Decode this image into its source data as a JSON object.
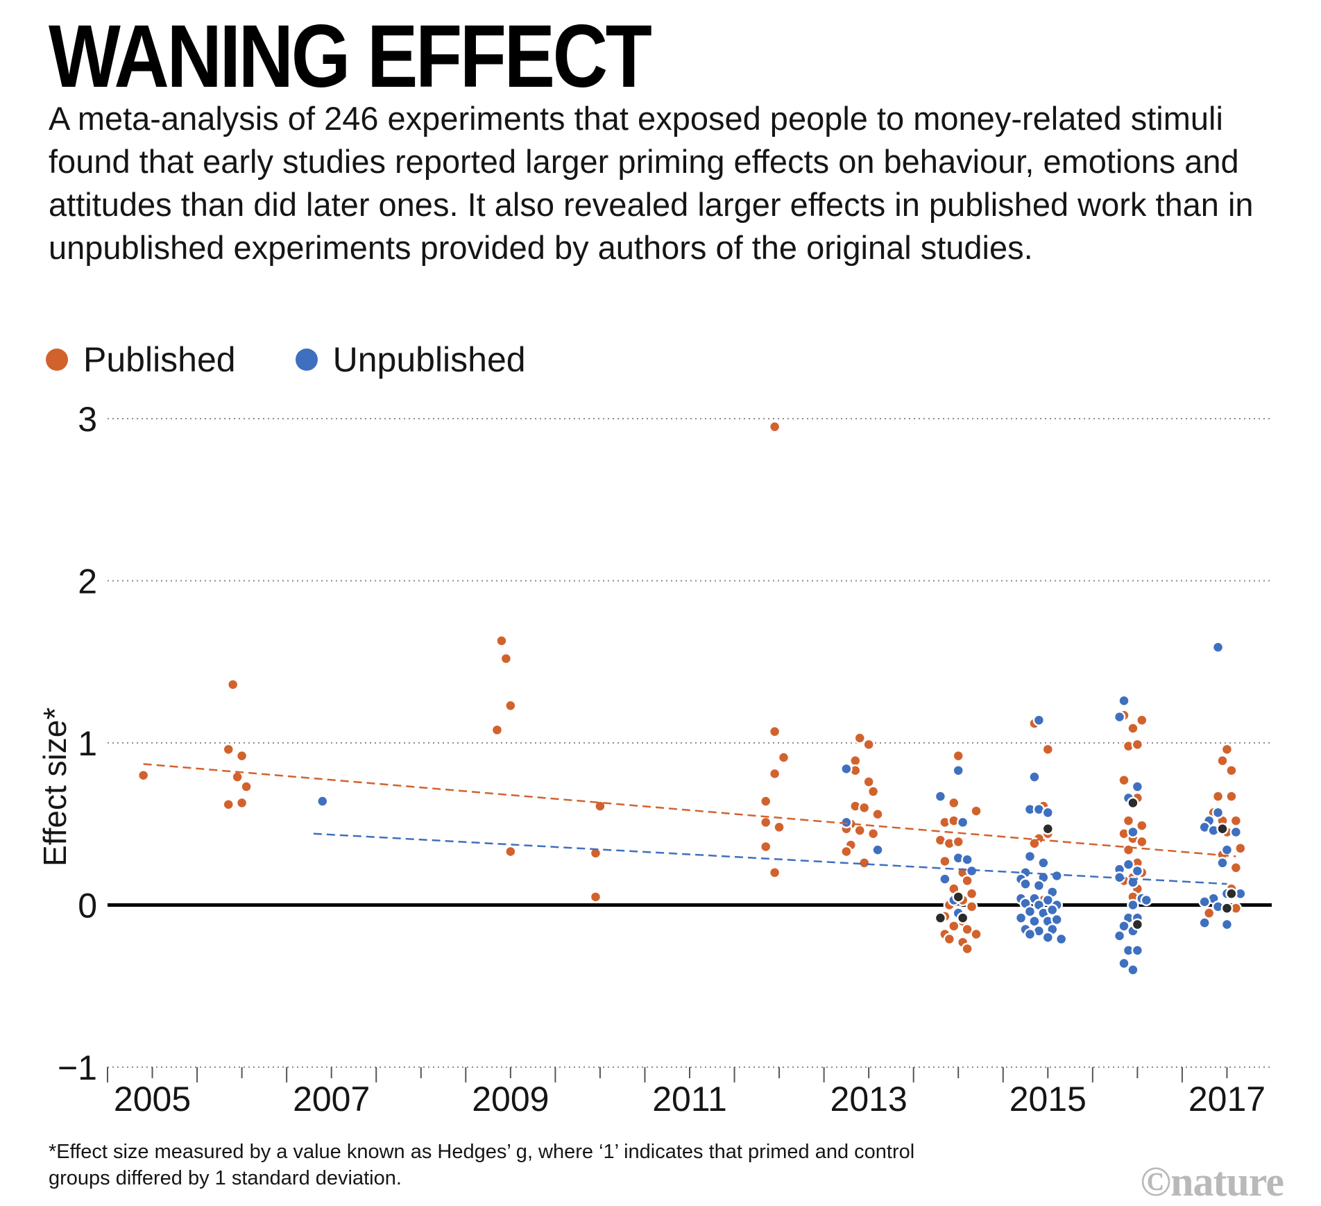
{
  "header": {
    "title": "WANING EFFECT",
    "subtitle": "A meta-analysis of 246 experiments that exposed people to money-related stimuli found that early studies reported larger priming effects on behaviour, emotions and attitudes than did later ones. It also revealed larger effects in published work than in unpublished experiments provided by authors of the original studies."
  },
  "legend": {
    "published": "Published",
    "unpublished": "Unpublished"
  },
  "footnote": "*Effect size measured by a value known as Hedges’ g, where ‘1’ indicates that primed and control groups differed by 1 standard deviation.",
  "credit": "©nature",
  "colors": {
    "published": "#d2622d",
    "unpublished": "#3f6fbf",
    "overlap": "#2b2b2b",
    "zero_line": "#000000",
    "grid": "#8a8a8a"
  },
  "chart_data": {
    "type": "scatter",
    "ylabel": "Effect size*",
    "ylim": [
      -1,
      3
    ],
    "yticks": [
      3,
      2,
      1,
      0,
      -1
    ],
    "xlim": [
      2004.5,
      2017.5
    ],
    "xticks": [
      2005,
      2007,
      2009,
      2011,
      2013,
      2015,
      2017
    ],
    "grid": "dotted horizontal",
    "legend_position": "top-left",
    "series": [
      {
        "name": "Published",
        "trend": [
          [
            2004.9,
            0.87
          ],
          [
            2017.1,
            0.3
          ]
        ],
        "points": [
          [
            2004.9,
            0.8
          ],
          [
            2005.9,
            1.36
          ],
          [
            2005.85,
            0.96
          ],
          [
            2006.0,
            0.92
          ],
          [
            2005.95,
            0.79
          ],
          [
            2006.05,
            0.73
          ],
          [
            2005.85,
            0.62
          ],
          [
            2006.0,
            0.63
          ],
          [
            2008.9,
            1.63
          ],
          [
            2008.95,
            1.52
          ],
          [
            2009.0,
            1.23
          ],
          [
            2008.85,
            1.08
          ],
          [
            2009.0,
            0.33
          ],
          [
            2010.0,
            0.61
          ],
          [
            2009.95,
            0.32
          ],
          [
            2009.95,
            0.05
          ],
          [
            2011.95,
            2.95
          ],
          [
            2011.95,
            1.07
          ],
          [
            2012.05,
            0.91
          ],
          [
            2011.95,
            0.81
          ],
          [
            2011.85,
            0.64
          ],
          [
            2011.85,
            0.51
          ],
          [
            2012.0,
            0.48
          ],
          [
            2011.85,
            0.36
          ],
          [
            2011.95,
            0.2
          ],
          [
            2012.9,
            1.03
          ],
          [
            2012.85,
            0.89
          ],
          [
            2013.0,
            0.99
          ],
          [
            2012.85,
            0.83
          ],
          [
            2013.0,
            0.76
          ],
          [
            2013.05,
            0.7
          ],
          [
            2012.85,
            0.61
          ],
          [
            2012.95,
            0.6
          ],
          [
            2013.1,
            0.56
          ],
          [
            2012.8,
            0.5
          ],
          [
            2012.75,
            0.47
          ],
          [
            2012.9,
            0.46
          ],
          [
            2013.05,
            0.44
          ],
          [
            2012.8,
            0.37
          ],
          [
            2012.75,
            0.33
          ],
          [
            2012.95,
            0.26
          ],
          [
            2014.0,
            0.92
          ],
          [
            2013.95,
            0.63
          ],
          [
            2014.2,
            0.58
          ],
          [
            2013.85,
            0.51
          ],
          [
            2013.95,
            0.52
          ],
          [
            2013.8,
            0.4
          ],
          [
            2013.9,
            0.38
          ],
          [
            2014.0,
            0.39
          ],
          [
            2013.85,
            0.27
          ],
          [
            2014.05,
            0.2
          ],
          [
            2014.1,
            0.15
          ],
          [
            2013.95,
            0.1
          ],
          [
            2014.15,
            0.07
          ],
          [
            2014.05,
            0.03
          ],
          [
            2013.9,
            0.0
          ],
          [
            2014.15,
            -0.01
          ],
          [
            2014.0,
            -0.04
          ],
          [
            2013.85,
            -0.07
          ],
          [
            2014.05,
            -0.1
          ],
          [
            2013.95,
            -0.13
          ],
          [
            2014.1,
            -0.15
          ],
          [
            2013.85,
            -0.18
          ],
          [
            2014.2,
            -0.18
          ],
          [
            2013.9,
            -0.21
          ],
          [
            2014.05,
            -0.23
          ],
          [
            2014.1,
            -0.27
          ],
          [
            2014.85,
            1.12
          ],
          [
            2015.0,
            0.96
          ],
          [
            2014.95,
            0.61
          ],
          [
            2015.0,
            0.44
          ],
          [
            2014.9,
            0.41
          ],
          [
            2014.85,
            0.38
          ],
          [
            2015.05,
            0.07
          ],
          [
            2014.95,
            0.03
          ],
          [
            2015.85,
            1.17
          ],
          [
            2016.05,
            1.14
          ],
          [
            2015.95,
            1.09
          ],
          [
            2015.9,
            0.98
          ],
          [
            2016.0,
            0.99
          ],
          [
            2015.85,
            0.77
          ],
          [
            2015.95,
            0.62
          ],
          [
            2016.0,
            0.66
          ],
          [
            2015.9,
            0.52
          ],
          [
            2016.05,
            0.49
          ],
          [
            2015.85,
            0.44
          ],
          [
            2015.95,
            0.41
          ],
          [
            2016.05,
            0.39
          ],
          [
            2015.9,
            0.34
          ],
          [
            2016.0,
            0.26
          ],
          [
            2015.8,
            0.22
          ],
          [
            2016.05,
            0.2
          ],
          [
            2015.95,
            0.17
          ],
          [
            2015.85,
            0.15
          ],
          [
            2016.0,
            0.1
          ],
          [
            2015.95,
            0.05
          ],
          [
            2017.0,
            0.96
          ],
          [
            2016.95,
            0.89
          ],
          [
            2017.05,
            0.83
          ],
          [
            2016.9,
            0.67
          ],
          [
            2017.05,
            0.67
          ],
          [
            2016.85,
            0.57
          ],
          [
            2016.95,
            0.52
          ],
          [
            2017.1,
            0.52
          ],
          [
            2016.85,
            0.47
          ],
          [
            2017.0,
            0.45
          ],
          [
            2017.15,
            0.35
          ],
          [
            2016.95,
            0.31
          ],
          [
            2017.1,
            0.23
          ],
          [
            2017.05,
            0.1
          ],
          [
            2016.9,
            -0.02
          ],
          [
            2017.1,
            -0.02
          ],
          [
            2016.8,
            -0.05
          ]
        ]
      },
      {
        "name": "Unpublished",
        "trend": [
          [
            2006.8,
            0.44
          ],
          [
            2017.0,
            0.13
          ]
        ],
        "points": [
          [
            2006.9,
            0.64
          ],
          [
            2012.75,
            0.84
          ],
          [
            2012.75,
            0.51
          ],
          [
            2013.1,
            0.34
          ],
          [
            2013.8,
            0.67
          ],
          [
            2014.0,
            0.83
          ],
          [
            2014.05,
            0.51
          ],
          [
            2014.0,
            0.29
          ],
          [
            2014.1,
            0.28
          ],
          [
            2014.15,
            0.21
          ],
          [
            2013.85,
            0.16
          ],
          [
            2013.95,
            0.03
          ],
          [
            2014.0,
            -0.05
          ],
          [
            2014.9,
            1.14
          ],
          [
            2014.85,
            0.79
          ],
          [
            2014.8,
            0.59
          ],
          [
            2014.9,
            0.59
          ],
          [
            2015.0,
            0.57
          ],
          [
            2014.8,
            0.3
          ],
          [
            2014.95,
            0.26
          ],
          [
            2014.75,
            0.2
          ],
          [
            2014.7,
            0.16
          ],
          [
            2014.95,
            0.17
          ],
          [
            2015.1,
            0.18
          ],
          [
            2014.75,
            0.13
          ],
          [
            2014.9,
            0.12
          ],
          [
            2015.05,
            0.08
          ],
          [
            2014.7,
            0.04
          ],
          [
            2014.85,
            0.04
          ],
          [
            2015.0,
            0.03
          ],
          [
            2014.75,
            0.01
          ],
          [
            2014.9,
            0.0
          ],
          [
            2015.1,
            0.0
          ],
          [
            2014.8,
            -0.04
          ],
          [
            2014.95,
            -0.05
          ],
          [
            2015.05,
            -0.03
          ],
          [
            2014.7,
            -0.08
          ],
          [
            2014.85,
            -0.1
          ],
          [
            2015.0,
            -0.1
          ],
          [
            2015.1,
            -0.09
          ],
          [
            2014.75,
            -0.15
          ],
          [
            2014.9,
            -0.16
          ],
          [
            2015.05,
            -0.15
          ],
          [
            2014.8,
            -0.18
          ],
          [
            2015.0,
            -0.2
          ],
          [
            2015.15,
            -0.21
          ],
          [
            2015.85,
            1.26
          ],
          [
            2015.8,
            1.16
          ],
          [
            2016.0,
            0.73
          ],
          [
            2015.9,
            0.66
          ],
          [
            2015.95,
            0.45
          ],
          [
            2015.8,
            0.22
          ],
          [
            2015.9,
            0.25
          ],
          [
            2016.0,
            0.21
          ],
          [
            2015.8,
            0.17
          ],
          [
            2015.95,
            0.14
          ],
          [
            2016.05,
            0.04
          ],
          [
            2015.95,
            0.0
          ],
          [
            2016.1,
            0.03
          ],
          [
            2015.9,
            -0.08
          ],
          [
            2016.0,
            -0.08
          ],
          [
            2015.85,
            -0.13
          ],
          [
            2015.95,
            -0.16
          ],
          [
            2015.8,
            -0.19
          ],
          [
            2015.9,
            -0.28
          ],
          [
            2016.0,
            -0.28
          ],
          [
            2015.85,
            -0.36
          ],
          [
            2015.95,
            -0.4
          ],
          [
            2016.9,
            1.59
          ],
          [
            2016.9,
            0.57
          ],
          [
            2016.8,
            0.52
          ],
          [
            2016.75,
            0.48
          ],
          [
            2016.85,
            0.46
          ],
          [
            2017.1,
            0.45
          ],
          [
            2017.0,
            0.34
          ],
          [
            2016.95,
            0.26
          ],
          [
            2016.85,
            0.04
          ],
          [
            2017.0,
            0.07
          ],
          [
            2017.15,
            0.07
          ],
          [
            2016.75,
            0.02
          ],
          [
            2016.9,
            -0.01
          ],
          [
            2017.0,
            -0.12
          ],
          [
            2016.75,
            -0.11
          ]
        ]
      },
      {
        "name": "",
        "points": [
          [
            2013.8,
            -0.08
          ],
          [
            2014.05,
            -0.08
          ],
          [
            2014.0,
            0.05
          ],
          [
            2015.0,
            0.47
          ],
          [
            2016.0,
            -0.12
          ],
          [
            2015.95,
            0.63
          ],
          [
            2017.0,
            -0.02
          ],
          [
            2017.05,
            0.07
          ],
          [
            2016.95,
            0.47
          ]
        ]
      }
    ]
  }
}
